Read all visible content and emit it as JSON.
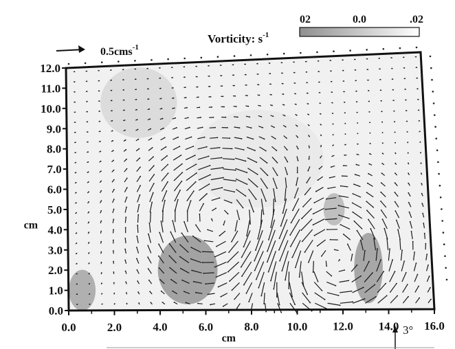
{
  "chart_data": {
    "type": "heatmap",
    "title": "",
    "xlabel": "cm",
    "ylabel": "cm",
    "xlim": [
      0,
      16
    ],
    "ylim": [
      0,
      12
    ],
    "xticks": [
      "0.0",
      "2.0",
      "4.0",
      "6.0",
      "8.0",
      "10.0",
      "12.0",
      "14.0",
      "16.0"
    ],
    "yticks": [
      "0.0",
      "1.0",
      "2.0",
      "3.0",
      "4.0",
      "5.0",
      "6.0",
      "7.0",
      "8.0",
      "9.0",
      "10.0",
      "11.0",
      "12.0"
    ],
    "colorbar": {
      "label": "Vorticity: s",
      "label_superscript": "-1",
      "tick_labels": [
        "02",
        "0.0",
        ".02"
      ],
      "range": [
        -0.02,
        0.02
      ],
      "low_color": "#8f8f8f",
      "high_color": "#ffffff"
    },
    "reference_vector": {
      "label": "0.5cms",
      "superscript": "-1",
      "magnitude_cm_s": 0.5
    },
    "angle_annotation": "3°",
    "vorticity_regions": [
      {
        "x": [
          3.9,
          6.6
        ],
        "y": [
          0.3,
          3.6
        ],
        "vorticity": -0.018
      },
      {
        "x": [
          12.5,
          13.9
        ],
        "y": [
          0.3,
          3.6
        ],
        "vorticity": -0.016
      },
      {
        "x": [
          0.0,
          1.2
        ],
        "y": [
          0.0,
          2.0
        ],
        "vorticity": -0.012
      },
      {
        "x": [
          11.3,
          12.3
        ],
        "y": [
          4.0,
          5.5
        ],
        "vorticity": -0.006
      },
      {
        "x": [
          5.5,
          11.5
        ],
        "y": [
          5.0,
          9.5
        ],
        "vorticity": 0.012
      },
      {
        "x": [
          1.5,
          5.0
        ],
        "y": [
          8.5,
          11.8
        ],
        "vorticity": 0.006
      }
    ],
    "flow_structures": [
      {
        "kind": "vortex",
        "center": [
          6.8,
          4.4
        ],
        "sense": "clockwise"
      },
      {
        "kind": "vortex",
        "center": [
          11.6,
          2.4
        ],
        "sense": "counterclockwise"
      }
    ],
    "grid": false
  }
}
